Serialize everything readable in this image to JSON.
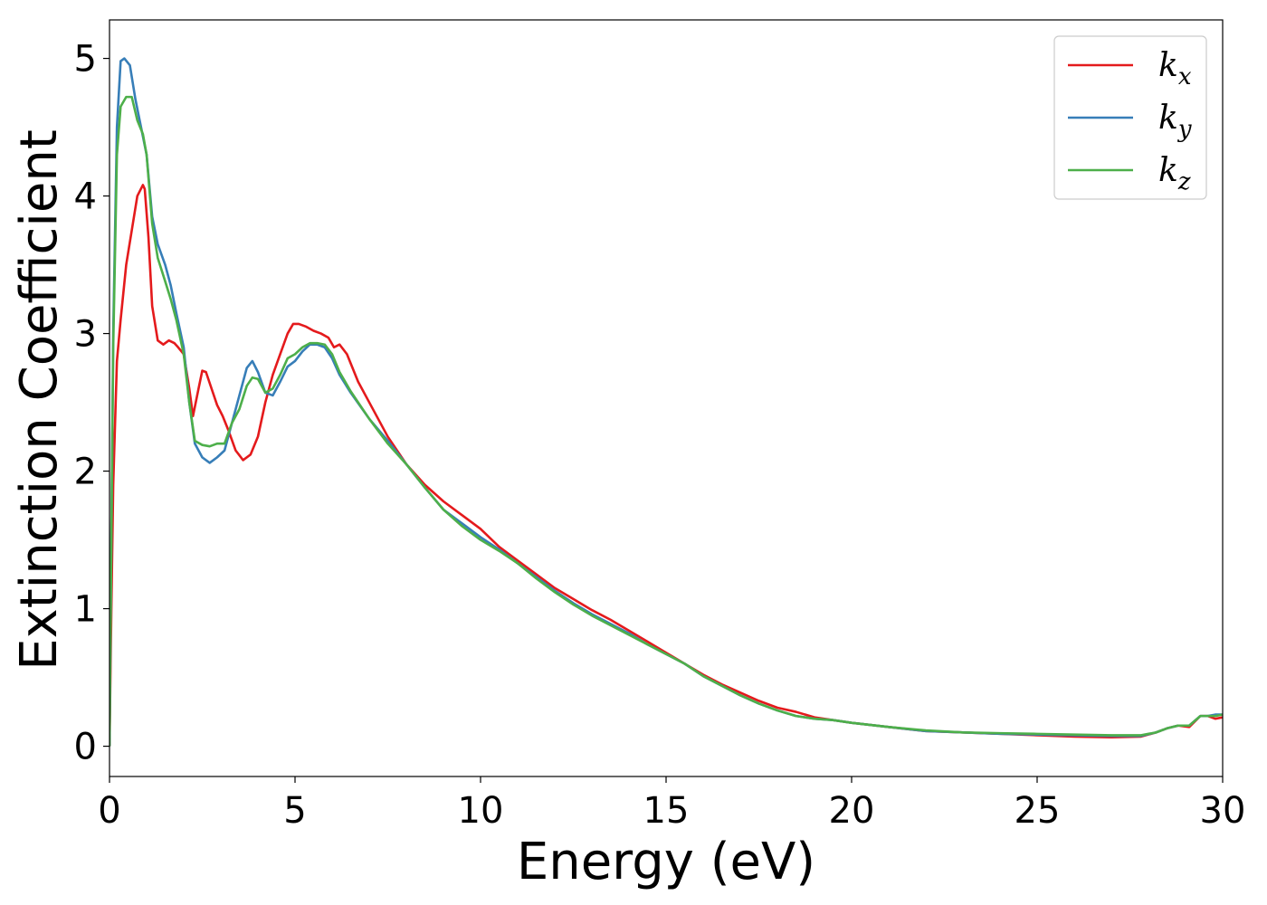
{
  "chart_data": {
    "type": "line",
    "title": "",
    "xlabel": "Energy (eV)",
    "ylabel": "Extinction Coefficient",
    "xlim": [
      0,
      30
    ],
    "ylim": [
      -0.22,
      5.28
    ],
    "xticks": [
      0,
      5,
      10,
      15,
      20,
      25,
      30
    ],
    "xtick_labels": [
      "0",
      "5",
      "10",
      "15",
      "20",
      "25",
      "30"
    ],
    "yticks": [
      0,
      1,
      2,
      3,
      4,
      5
    ],
    "ytick_labels": [
      "0",
      "1",
      "2",
      "3",
      "4",
      "5"
    ],
    "grid": false,
    "legend": {
      "position": "top-right"
    },
    "series": [
      {
        "name": "k_x",
        "label_main": "k",
        "label_sub": "x",
        "color": "#e41a1c",
        "x": [
          0,
          0.05,
          0.1,
          0.2,
          0.3,
          0.45,
          0.6,
          0.75,
          0.9,
          0.95,
          1.05,
          1.15,
          1.3,
          1.45,
          1.6,
          1.75,
          1.85,
          2.0,
          2.15,
          2.25,
          2.4,
          2.5,
          2.6,
          2.75,
          2.9,
          3.05,
          3.2,
          3.4,
          3.6,
          3.8,
          4.0,
          4.2,
          4.4,
          4.6,
          4.8,
          4.95,
          5.1,
          5.3,
          5.5,
          5.7,
          5.9,
          6.05,
          6.2,
          6.4,
          6.7,
          7.0,
          7.5,
          8.0,
          8.5,
          9.0,
          9.5,
          10.0,
          10.5,
          11.0,
          11.5,
          12.0,
          12.5,
          13.0,
          13.5,
          14.0,
          14.5,
          15.0,
          15.5,
          16.0,
          16.5,
          17.0,
          17.5,
          18.0,
          18.5,
          19.0,
          19.5,
          20.0,
          21.0,
          22.0,
          23.0,
          24.0,
          25.0,
          26.0,
          27.0,
          27.8,
          28.2,
          28.5,
          28.8,
          29.1,
          29.4,
          29.6,
          29.8,
          30.0
        ],
        "y": [
          0,
          1.0,
          1.9,
          2.8,
          3.1,
          3.5,
          3.75,
          4.0,
          4.08,
          4.05,
          3.7,
          3.2,
          2.95,
          2.92,
          2.95,
          2.93,
          2.9,
          2.85,
          2.6,
          2.4,
          2.6,
          2.73,
          2.72,
          2.6,
          2.48,
          2.4,
          2.3,
          2.15,
          2.08,
          2.12,
          2.25,
          2.5,
          2.7,
          2.85,
          3.0,
          3.07,
          3.07,
          3.05,
          3.02,
          3.0,
          2.97,
          2.9,
          2.92,
          2.85,
          2.65,
          2.5,
          2.25,
          2.05,
          1.9,
          1.78,
          1.68,
          1.58,
          1.45,
          1.35,
          1.25,
          1.15,
          1.07,
          0.99,
          0.92,
          0.84,
          0.76,
          0.68,
          0.6,
          0.52,
          0.45,
          0.39,
          0.33,
          0.28,
          0.25,
          0.21,
          0.19,
          0.17,
          0.14,
          0.11,
          0.1,
          0.09,
          0.08,
          0.07,
          0.065,
          0.07,
          0.1,
          0.13,
          0.15,
          0.14,
          0.22,
          0.22,
          0.2,
          0.21
        ]
      },
      {
        "name": "k_y",
        "label_main": "k",
        "label_sub": "y",
        "color": "#377eb8",
        "x": [
          0,
          0.05,
          0.1,
          0.2,
          0.3,
          0.4,
          0.55,
          0.7,
          0.85,
          1.0,
          1.15,
          1.3,
          1.5,
          1.65,
          1.8,
          2.0,
          2.15,
          2.3,
          2.5,
          2.7,
          2.9,
          3.1,
          3.3,
          3.5,
          3.7,
          3.85,
          4.0,
          4.2,
          4.4,
          4.6,
          4.8,
          5.0,
          5.2,
          5.4,
          5.6,
          5.8,
          6.0,
          6.2,
          6.5,
          7.0,
          7.5,
          8.0,
          8.5,
          9.0,
          9.5,
          10.0,
          10.5,
          11.0,
          11.5,
          12.0,
          12.5,
          13.0,
          13.5,
          14.0,
          14.5,
          15.0,
          15.5,
          16.0,
          16.5,
          17.0,
          17.5,
          18.0,
          18.5,
          19.0,
          19.5,
          20.0,
          21.0,
          22.0,
          23.0,
          24.0,
          25.0,
          26.0,
          27.0,
          27.8,
          28.2,
          28.5,
          28.8,
          29.1,
          29.4,
          29.6,
          29.8,
          30.0
        ],
        "y": [
          0,
          1.5,
          3.0,
          4.5,
          4.98,
          5.0,
          4.95,
          4.7,
          4.5,
          4.3,
          3.85,
          3.65,
          3.5,
          3.35,
          3.15,
          2.9,
          2.5,
          2.2,
          2.1,
          2.06,
          2.1,
          2.15,
          2.35,
          2.55,
          2.75,
          2.8,
          2.72,
          2.57,
          2.55,
          2.65,
          2.76,
          2.8,
          2.87,
          2.92,
          2.92,
          2.9,
          2.82,
          2.7,
          2.57,
          2.38,
          2.22,
          2.05,
          1.88,
          1.72,
          1.62,
          1.52,
          1.43,
          1.33,
          1.23,
          1.13,
          1.04,
          0.96,
          0.89,
          0.82,
          0.74,
          0.67,
          0.6,
          0.51,
          0.44,
          0.37,
          0.31,
          0.26,
          0.22,
          0.2,
          0.19,
          0.17,
          0.14,
          0.11,
          0.1,
          0.09,
          0.085,
          0.08,
          0.075,
          0.075,
          0.1,
          0.13,
          0.15,
          0.15,
          0.22,
          0.22,
          0.23,
          0.23
        ]
      },
      {
        "name": "k_z",
        "label_main": "k",
        "label_sub": "z",
        "color": "#4daf4a",
        "x": [
          0,
          0.05,
          0.1,
          0.2,
          0.3,
          0.45,
          0.6,
          0.75,
          0.9,
          1.0,
          1.15,
          1.3,
          1.5,
          1.65,
          1.8,
          2.0,
          2.15,
          2.3,
          2.5,
          2.7,
          2.9,
          3.1,
          3.3,
          3.5,
          3.7,
          3.85,
          4.0,
          4.2,
          4.4,
          4.6,
          4.8,
          5.0,
          5.2,
          5.4,
          5.6,
          5.8,
          6.0,
          6.2,
          6.5,
          7.0,
          7.5,
          8.0,
          8.5,
          9.0,
          9.5,
          10.0,
          10.5,
          11.0,
          11.5,
          12.0,
          12.5,
          13.0,
          13.5,
          14.0,
          14.5,
          15.0,
          15.5,
          16.0,
          16.5,
          17.0,
          17.5,
          18.0,
          18.5,
          19.0,
          19.5,
          20.0,
          21.0,
          22.0,
          23.0,
          24.0,
          25.0,
          26.0,
          27.0,
          27.8,
          28.2,
          28.5,
          28.8,
          29.1,
          29.4,
          29.6,
          29.8,
          30.0
        ],
        "y": [
          0,
          1.5,
          2.9,
          4.3,
          4.65,
          4.72,
          4.72,
          4.55,
          4.45,
          4.3,
          3.8,
          3.55,
          3.38,
          3.25,
          3.1,
          2.85,
          2.5,
          2.22,
          2.19,
          2.18,
          2.2,
          2.2,
          2.35,
          2.45,
          2.62,
          2.68,
          2.67,
          2.57,
          2.6,
          2.7,
          2.82,
          2.85,
          2.9,
          2.93,
          2.93,
          2.92,
          2.85,
          2.72,
          2.58,
          2.38,
          2.2,
          2.05,
          1.88,
          1.72,
          1.6,
          1.5,
          1.42,
          1.33,
          1.22,
          1.12,
          1.03,
          0.95,
          0.88,
          0.81,
          0.74,
          0.67,
          0.6,
          0.51,
          0.44,
          0.37,
          0.31,
          0.26,
          0.22,
          0.2,
          0.19,
          0.17,
          0.14,
          0.115,
          0.1,
          0.095,
          0.09,
          0.085,
          0.08,
          0.08,
          0.1,
          0.13,
          0.15,
          0.15,
          0.22,
          0.22,
          0.22,
          0.23
        ]
      }
    ]
  }
}
